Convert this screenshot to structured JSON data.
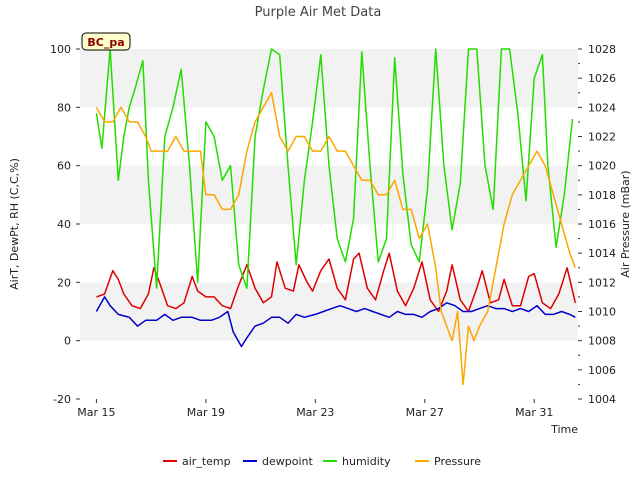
{
  "chart_data": {
    "type": "line",
    "title": "Purple Air Met Data",
    "site_label": "BC_pa",
    "xlabel": "Time",
    "ylabel_left": "AirT, DewPt, RH (C,C,%)",
    "ylabel_right": "Air Pressure (mBar)",
    "x_ticks": [
      "Mar 15",
      "Mar 19",
      "Mar 23",
      "Mar 27",
      "Mar 31"
    ],
    "x_tick_day": [
      0,
      4,
      8,
      12,
      16
    ],
    "xlim_days": [
      -0.6,
      17.6
    ],
    "ylim_left": [
      -20,
      100
    ],
    "y_ticks_left": [
      -20,
      0,
      20,
      40,
      60,
      80,
      100
    ],
    "ylim_right": [
      1004,
      1028
    ],
    "y_ticks_right": [
      1004,
      1006,
      1008,
      1010,
      1012,
      1014,
      1016,
      1018,
      1020,
      1022,
      1024,
      1026,
      1028
    ],
    "grid": false,
    "band_shading": true,
    "legend_position": "bottom",
    "series": [
      {
        "name": "air_temp",
        "color": "#dd0000",
        "axis": "left",
        "points": [
          [
            0,
            15
          ],
          [
            0.3,
            16
          ],
          [
            0.6,
            24
          ],
          [
            0.8,
            21
          ],
          [
            1.0,
            16
          ],
          [
            1.3,
            12
          ],
          [
            1.6,
            11
          ],
          [
            1.9,
            16
          ],
          [
            2.1,
            25
          ],
          [
            2.3,
            20
          ],
          [
            2.6,
            12
          ],
          [
            2.9,
            11
          ],
          [
            3.2,
            13
          ],
          [
            3.5,
            22
          ],
          [
            3.7,
            17
          ],
          [
            4.0,
            15
          ],
          [
            4.3,
            15
          ],
          [
            4.6,
            12
          ],
          [
            4.9,
            11
          ],
          [
            5.2,
            19
          ],
          [
            5.5,
            26
          ],
          [
            5.8,
            18
          ],
          [
            6.1,
            13
          ],
          [
            6.4,
            15
          ],
          [
            6.6,
            27
          ],
          [
            6.9,
            18
          ],
          [
            7.2,
            17
          ],
          [
            7.4,
            26
          ],
          [
            7.7,
            20
          ],
          [
            7.9,
            17
          ],
          [
            8.2,
            24
          ],
          [
            8.5,
            28
          ],
          [
            8.8,
            18
          ],
          [
            9.1,
            14
          ],
          [
            9.4,
            28
          ],
          [
            9.6,
            30
          ],
          [
            9.9,
            18
          ],
          [
            10.2,
            14
          ],
          [
            10.5,
            24
          ],
          [
            10.7,
            30
          ],
          [
            11.0,
            17
          ],
          [
            11.3,
            12
          ],
          [
            11.6,
            18
          ],
          [
            11.9,
            27
          ],
          [
            12.2,
            14
          ],
          [
            12.5,
            10
          ],
          [
            12.8,
            17
          ],
          [
            13.0,
            26
          ],
          [
            13.3,
            14
          ],
          [
            13.6,
            10
          ],
          [
            13.9,
            18
          ],
          [
            14.1,
            24
          ],
          [
            14.4,
            13
          ],
          [
            14.7,
            14
          ],
          [
            14.9,
            21
          ],
          [
            15.2,
            12
          ],
          [
            15.5,
            12
          ],
          [
            15.8,
            22
          ],
          [
            16.0,
            23
          ],
          [
            16.3,
            13
          ],
          [
            16.6,
            11
          ],
          [
            16.9,
            16
          ],
          [
            17.2,
            25
          ],
          [
            17.5,
            13
          ]
        ]
      },
      {
        "name": "dewpoint",
        "color": "#0000cc",
        "axis": "left",
        "points": [
          [
            0,
            10
          ],
          [
            0.3,
            15
          ],
          [
            0.5,
            12
          ],
          [
            0.8,
            9
          ],
          [
            1.2,
            8
          ],
          [
            1.5,
            5
          ],
          [
            1.8,
            7
          ],
          [
            2.2,
            7
          ],
          [
            2.5,
            9
          ],
          [
            2.8,
            7
          ],
          [
            3.1,
            8
          ],
          [
            3.5,
            8
          ],
          [
            3.8,
            7
          ],
          [
            4.2,
            7
          ],
          [
            4.5,
            8
          ],
          [
            4.8,
            10
          ],
          [
            5.0,
            3
          ],
          [
            5.3,
            -2
          ],
          [
            5.5,
            1
          ],
          [
            5.8,
            5
          ],
          [
            6.1,
            6
          ],
          [
            6.4,
            8
          ],
          [
            6.7,
            8
          ],
          [
            7.0,
            6
          ],
          [
            7.3,
            9
          ],
          [
            7.6,
            8
          ],
          [
            8.0,
            9
          ],
          [
            8.3,
            10
          ],
          [
            8.6,
            11
          ],
          [
            8.9,
            12
          ],
          [
            9.2,
            11
          ],
          [
            9.5,
            10
          ],
          [
            9.8,
            11
          ],
          [
            10.1,
            10
          ],
          [
            10.4,
            9
          ],
          [
            10.7,
            8
          ],
          [
            11.0,
            10
          ],
          [
            11.3,
            9
          ],
          [
            11.6,
            9
          ],
          [
            11.9,
            8
          ],
          [
            12.2,
            10
          ],
          [
            12.5,
            11
          ],
          [
            12.8,
            13
          ],
          [
            13.1,
            12
          ],
          [
            13.4,
            10
          ],
          [
            13.7,
            10
          ],
          [
            14.0,
            11
          ],
          [
            14.3,
            12
          ],
          [
            14.6,
            11
          ],
          [
            14.9,
            11
          ],
          [
            15.2,
            10
          ],
          [
            15.5,
            11
          ],
          [
            15.8,
            10
          ],
          [
            16.1,
            12
          ],
          [
            16.4,
            9
          ],
          [
            16.7,
            9
          ],
          [
            17.0,
            10
          ],
          [
            17.3,
            9
          ],
          [
            17.5,
            8
          ]
        ]
      },
      {
        "name": "humidity",
        "color": "#22dd00",
        "axis": "left",
        "points": [
          [
            0,
            78
          ],
          [
            0.2,
            66
          ],
          [
            0.5,
            100
          ],
          [
            0.8,
            55
          ],
          [
            1.0,
            70
          ],
          [
            1.2,
            80
          ],
          [
            1.4,
            86
          ],
          [
            1.7,
            96
          ],
          [
            1.9,
            55
          ],
          [
            2.2,
            18
          ],
          [
            2.5,
            70
          ],
          [
            2.8,
            80
          ],
          [
            3.1,
            93
          ],
          [
            3.4,
            60
          ],
          [
            3.7,
            20
          ],
          [
            4.0,
            75
          ],
          [
            4.3,
            70
          ],
          [
            4.6,
            55
          ],
          [
            4.9,
            60
          ],
          [
            5.2,
            26
          ],
          [
            5.5,
            18
          ],
          [
            5.8,
            70
          ],
          [
            6.1,
            86
          ],
          [
            6.4,
            100
          ],
          [
            6.7,
            98
          ],
          [
            7.0,
            60
          ],
          [
            7.3,
            26
          ],
          [
            7.6,
            55
          ],
          [
            7.9,
            75
          ],
          [
            8.2,
            98
          ],
          [
            8.5,
            60
          ],
          [
            8.8,
            35
          ],
          [
            9.1,
            27
          ],
          [
            9.4,
            42
          ],
          [
            9.7,
            99
          ],
          [
            10.0,
            60
          ],
          [
            10.3,
            27
          ],
          [
            10.6,
            35
          ],
          [
            10.9,
            97
          ],
          [
            11.2,
            57
          ],
          [
            11.5,
            33
          ],
          [
            11.8,
            27
          ],
          [
            12.1,
            52
          ],
          [
            12.4,
            100
          ],
          [
            12.7,
            60
          ],
          [
            13.0,
            38
          ],
          [
            13.3,
            54
          ],
          [
            13.6,
            100
          ],
          [
            13.9,
            100
          ],
          [
            14.2,
            60
          ],
          [
            14.5,
            45
          ],
          [
            14.8,
            100
          ],
          [
            15.1,
            100
          ],
          [
            15.4,
            78
          ],
          [
            15.7,
            48
          ],
          [
            16.0,
            90
          ],
          [
            16.3,
            98
          ],
          [
            16.5,
            60
          ],
          [
            16.8,
            32
          ],
          [
            17.1,
            50
          ],
          [
            17.4,
            76
          ]
        ]
      },
      {
        "name": "Pressure",
        "color": "#ffa500",
        "axis": "right",
        "points": [
          [
            0,
            1024
          ],
          [
            0.3,
            1023
          ],
          [
            0.6,
            1023
          ],
          [
            0.9,
            1024
          ],
          [
            1.2,
            1023
          ],
          [
            1.5,
            1023
          ],
          [
            1.8,
            1022
          ],
          [
            2.0,
            1021
          ],
          [
            2.3,
            1021
          ],
          [
            2.6,
            1021
          ],
          [
            2.9,
            1022
          ],
          [
            3.2,
            1021
          ],
          [
            3.5,
            1021
          ],
          [
            3.8,
            1021
          ],
          [
            4.0,
            1018
          ],
          [
            4.3,
            1018
          ],
          [
            4.6,
            1017
          ],
          [
            4.9,
            1017
          ],
          [
            5.2,
            1018
          ],
          [
            5.5,
            1021
          ],
          [
            5.8,
            1023
          ],
          [
            6.1,
            1024
          ],
          [
            6.4,
            1025
          ],
          [
            6.7,
            1022
          ],
          [
            7.0,
            1021
          ],
          [
            7.3,
            1022
          ],
          [
            7.6,
            1022
          ],
          [
            7.9,
            1021
          ],
          [
            8.2,
            1021
          ],
          [
            8.5,
            1022
          ],
          [
            8.8,
            1021
          ],
          [
            9.1,
            1021
          ],
          [
            9.4,
            1020
          ],
          [
            9.7,
            1019
          ],
          [
            10.0,
            1019
          ],
          [
            10.3,
            1018
          ],
          [
            10.6,
            1018
          ],
          [
            10.9,
            1019
          ],
          [
            11.2,
            1017
          ],
          [
            11.5,
            1017
          ],
          [
            11.8,
            1015
          ],
          [
            12.1,
            1016
          ],
          [
            12.4,
            1013
          ],
          [
            12.6,
            1010
          ],
          [
            12.8,
            1009
          ],
          [
            13.0,
            1008
          ],
          [
            13.2,
            1010
          ],
          [
            13.4,
            1005
          ],
          [
            13.6,
            1009
          ],
          [
            13.8,
            1008
          ],
          [
            14.0,
            1009
          ],
          [
            14.3,
            1010
          ],
          [
            14.6,
            1013
          ],
          [
            14.9,
            1016
          ],
          [
            15.2,
            1018
          ],
          [
            15.5,
            1019
          ],
          [
            15.8,
            1020
          ],
          [
            16.1,
            1021
          ],
          [
            16.4,
            1020
          ],
          [
            16.7,
            1018
          ],
          [
            17.0,
            1016
          ],
          [
            17.3,
            1014
          ],
          [
            17.5,
            1013
          ]
        ]
      }
    ]
  }
}
